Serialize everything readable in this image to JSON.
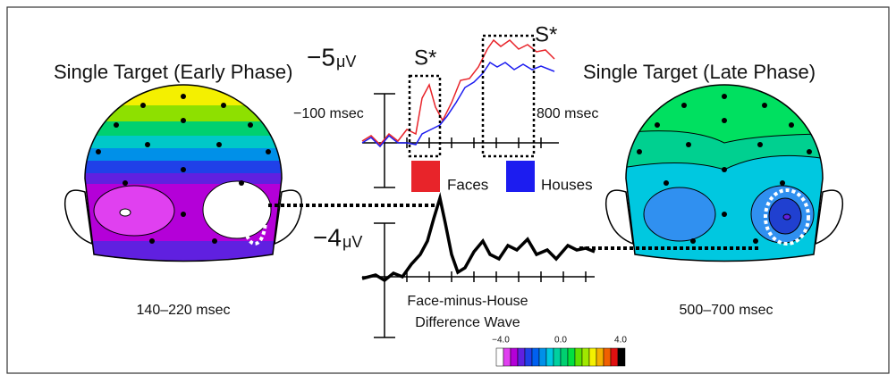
{
  "left_map": {
    "title": "Single Target (Early Phase)",
    "time": "140–220 msec"
  },
  "right_map": {
    "title": "Single Target (Late Phase)",
    "time": "500–700 msec"
  },
  "top_wave": {
    "scale_value": "−5",
    "scale_unit": "μV",
    "start": "−100 msec",
    "end": "800 msec",
    "significance": [
      "S*",
      "S*"
    ],
    "legend": [
      {
        "name": "Faces",
        "color": "#e8242a"
      },
      {
        "name": "Houses",
        "color": "#1c1cf0"
      }
    ]
  },
  "difference_wave": {
    "scale_value": "−4",
    "scale_unit": "μV",
    "label": [
      "Face-minus-House",
      "Difference Wave"
    ]
  },
  "colorbar": {
    "ticks": [
      "−4.0",
      "0.0",
      "4.0"
    ]
  }
}
